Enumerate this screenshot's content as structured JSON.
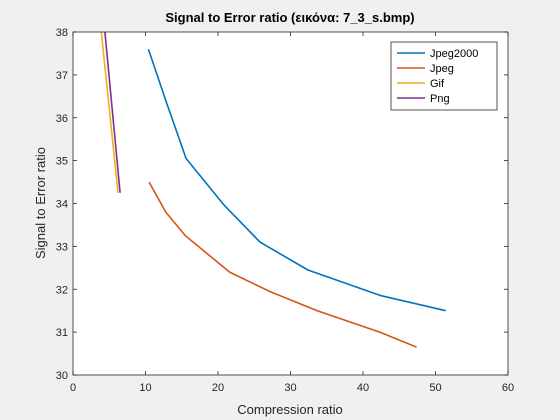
{
  "figure": {
    "background": "#f0f0f0"
  },
  "chart_data": {
    "type": "line",
    "title": "Signal to Error ratio (εικόνα: 7_3_s.bmp)",
    "xlabel": "Compression ratio",
    "ylabel": "Signal to Error ratio",
    "xlim": [
      0,
      60
    ],
    "ylim": [
      30,
      38
    ],
    "xticks": [
      0,
      10,
      20,
      30,
      40,
      50,
      60
    ],
    "yticks": [
      30,
      31,
      32,
      33,
      34,
      35,
      36,
      37,
      38
    ],
    "grid": false,
    "legend_position": "top-right",
    "series": [
      {
        "name": "Jpeg2000",
        "color": "#0072bd",
        "x": [
          10.4,
          12.8,
          15.6,
          20.9,
          25.8,
          32.4,
          42.5,
          51.4
        ],
        "y": [
          37.6,
          36.4,
          35.05,
          33.95,
          33.1,
          32.45,
          31.85,
          31.5
        ]
      },
      {
        "name": "Jpeg",
        "color": "#d95319",
        "x": [
          10.5,
          12.8,
          15.5,
          21.6,
          27.1,
          33.7,
          42.3,
          47.4
        ],
        "y": [
          34.5,
          33.8,
          33.25,
          32.4,
          31.95,
          31.5,
          31.0,
          30.65
        ]
      },
      {
        "name": "Gif",
        "color": "#edb120",
        "x": [
          3.9,
          6.2
        ],
        "y": [
          38.0,
          34.25
        ]
      },
      {
        "name": "Png",
        "color": "#7e2f8e",
        "x": [
          4.4,
          6.5
        ],
        "y": [
          38.0,
          34.25
        ]
      }
    ]
  }
}
